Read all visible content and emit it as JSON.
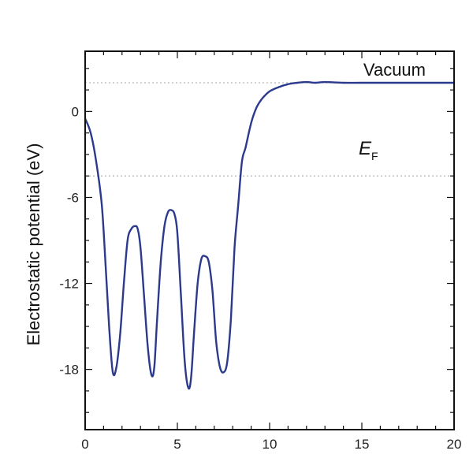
{
  "chart_data": {
    "type": "line",
    "ylabel": "Electrostatic potential (eV)",
    "xlim": [
      0,
      20
    ],
    "ylim": [
      -22.2,
      4.2
    ],
    "x_ticks": [
      0,
      5,
      10,
      15,
      20
    ],
    "y_ticks": [
      0,
      -6,
      -12,
      -18
    ],
    "x_tick_labels": [
      "0",
      "5",
      "10",
      "15",
      "20"
    ],
    "y_tick_labels": [
      "0",
      "-6",
      "-12",
      "-18"
    ],
    "line_color": "#2b3a8c",
    "reference_lines": [
      {
        "label": "Vacuum",
        "y": 2.0
      },
      {
        "label": "E",
        "label_sub": "F",
        "y": -4.5
      }
    ],
    "series": [
      {
        "x": [
          0,
          0.3,
          0.6,
          0.9,
          1.1,
          1.3,
          1.5,
          1.7,
          1.9,
          2.1,
          2.3,
          2.5,
          2.7,
          2.85,
          3.0,
          3.2,
          3.4,
          3.6,
          3.75,
          3.9,
          4.1,
          4.3,
          4.5,
          4.7,
          4.85,
          5.0,
          5.2,
          5.4,
          5.6,
          5.75,
          5.9,
          6.1,
          6.3,
          6.5,
          6.7,
          6.9,
          7.1,
          7.3,
          7.5,
          7.7,
          7.9,
          8.1,
          8.3,
          8.5,
          8.7,
          9.0,
          9.3,
          9.6,
          10.0,
          10.5,
          11.0,
          11.5,
          12.0,
          12.5,
          13.0,
          14.0,
          15.0,
          17.0,
          20.0
        ],
        "y": [
          -0.5,
          -1.5,
          -3.5,
          -6.5,
          -10.5,
          -15.0,
          -18.2,
          -17.8,
          -15.5,
          -12.0,
          -9.0,
          -8.2,
          -8.0,
          -8.2,
          -9.5,
          -13.0,
          -16.5,
          -18.4,
          -17.8,
          -14.5,
          -10.5,
          -8.0,
          -7.0,
          -6.9,
          -7.2,
          -8.5,
          -13.0,
          -17.5,
          -19.3,
          -18.5,
          -15.5,
          -12.0,
          -10.3,
          -10.1,
          -10.5,
          -12.5,
          -16.0,
          -17.8,
          -18.2,
          -17.5,
          -14.5,
          -9.5,
          -6.5,
          -3.5,
          -2.5,
          -0.8,
          0.3,
          0.9,
          1.4,
          1.7,
          1.9,
          2.0,
          2.05,
          2.0,
          2.05,
          2.0,
          2.0,
          2.0,
          2.0
        ]
      }
    ]
  }
}
